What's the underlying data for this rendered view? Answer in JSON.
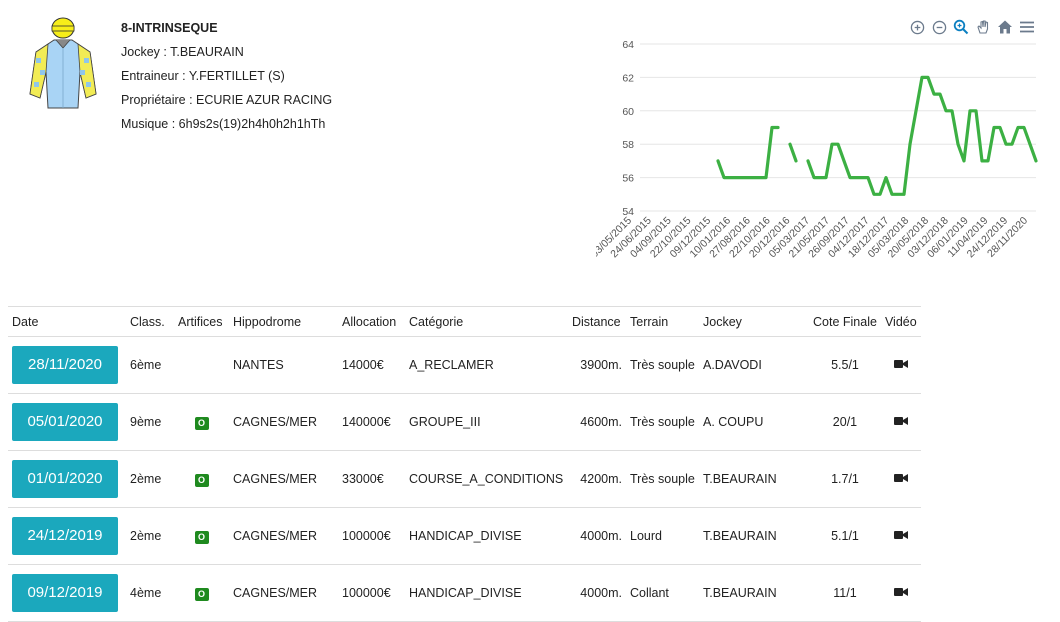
{
  "horse": {
    "name": "8-INTRINSEQUE",
    "jockey": "Jockey : T.BEAURAIN",
    "trainer": "Entraineur : Y.FERTILLET (S)",
    "owner": "Propriétaire : ECURIE AZUR RACING",
    "music": "Musique : 6h9s2s(19)2h4h0h2h1hTh"
  },
  "toolbar": [
    "zoom-in-icon",
    "zoom-out-icon",
    "magnifier-icon",
    "pan-hand-icon",
    "home-icon",
    "menu-icon"
  ],
  "colors": {
    "accent": "#1ba8bd",
    "line": "#3cb043",
    "badge": "#1f8a1f"
  },
  "chart_data": {
    "type": "line",
    "ylim": [
      54,
      64
    ],
    "yticks": [
      "54",
      "56",
      "58",
      "60",
      "62",
      "64"
    ],
    "xticks": [
      "03/05/2015",
      "24/06/2015",
      "04/09/2015",
      "22/10/2015",
      "09/12/2015",
      "10/01/2016",
      "27/08/2016",
      "22/10/2016",
      "20/12/2016",
      "05/03/2017",
      "21/05/2017",
      "26/09/2017",
      "04/12/2017",
      "18/12/2017",
      "05/03/2018",
      "20/05/2018",
      "03/12/2018",
      "06/01/2019",
      "11/04/2019",
      "24/12/2019",
      "28/11/2020"
    ],
    "series": [
      {
        "values": [
          null,
          null,
          null,
          null,
          null,
          null,
          null,
          null,
          null,
          null,
          null,
          null,
          null,
          57,
          56,
          56,
          56,
          56,
          56,
          56,
          56,
          56,
          59,
          59,
          null,
          58,
          57,
          null,
          57,
          56,
          56,
          56,
          58,
          58,
          57,
          56,
          56,
          56,
          56,
          55,
          55,
          56,
          55,
          55,
          55,
          58,
          60,
          62,
          62,
          61,
          61,
          60,
          60,
          58,
          57,
          60,
          60,
          57,
          57,
          59,
          59,
          58,
          58,
          59,
          59,
          58,
          57
        ]
      }
    ]
  },
  "table": {
    "headers": [
      "Date",
      "Class.",
      "Artifices",
      "Hippodrome",
      "Allocation",
      "Catégorie",
      "Distance",
      "Terrain",
      "Jockey",
      "Cote Finale",
      "Vidéo"
    ],
    "rows": [
      {
        "date": "28/11/2020",
        "class": "6ème",
        "artifice": "",
        "hippo": "NANTES",
        "alloc": "14000€",
        "cat": "A_RECLAMER",
        "dist": "3900m.",
        "terrain": "Très souple",
        "jockey": "A.DAVODI",
        "cote": "5.5/1"
      },
      {
        "date": "05/01/2020",
        "class": "9ème",
        "artifice": "O",
        "hippo": "CAGNES/MER",
        "alloc": "140000€",
        "cat": "GROUPE_III",
        "dist": "4600m.",
        "terrain": "Très souple",
        "jockey": "A. COUPU",
        "cote": "20/1"
      },
      {
        "date": "01/01/2020",
        "class": "2ème",
        "artifice": "O",
        "hippo": "CAGNES/MER",
        "alloc": "33000€",
        "cat": "COURSE_A_CONDITIONS",
        "dist": "4200m.",
        "terrain": "Très souple",
        "jockey": "T.BEAURAIN",
        "cote": "1.7/1"
      },
      {
        "date": "24/12/2019",
        "class": "2ème",
        "artifice": "O",
        "hippo": "CAGNES/MER",
        "alloc": "100000€",
        "cat": "HANDICAP_DIVISE",
        "dist": "4000m.",
        "terrain": "Lourd",
        "jockey": "T.BEAURAIN",
        "cote": "5.1/1"
      },
      {
        "date": "09/12/2019",
        "class": "4ème",
        "artifice": "O",
        "hippo": "CAGNES/MER",
        "alloc": "100000€",
        "cat": "HANDICAP_DIVISE",
        "dist": "4000m.",
        "terrain": "Collant",
        "jockey": "T.BEAURAIN",
        "cote": "11/1"
      }
    ]
  }
}
